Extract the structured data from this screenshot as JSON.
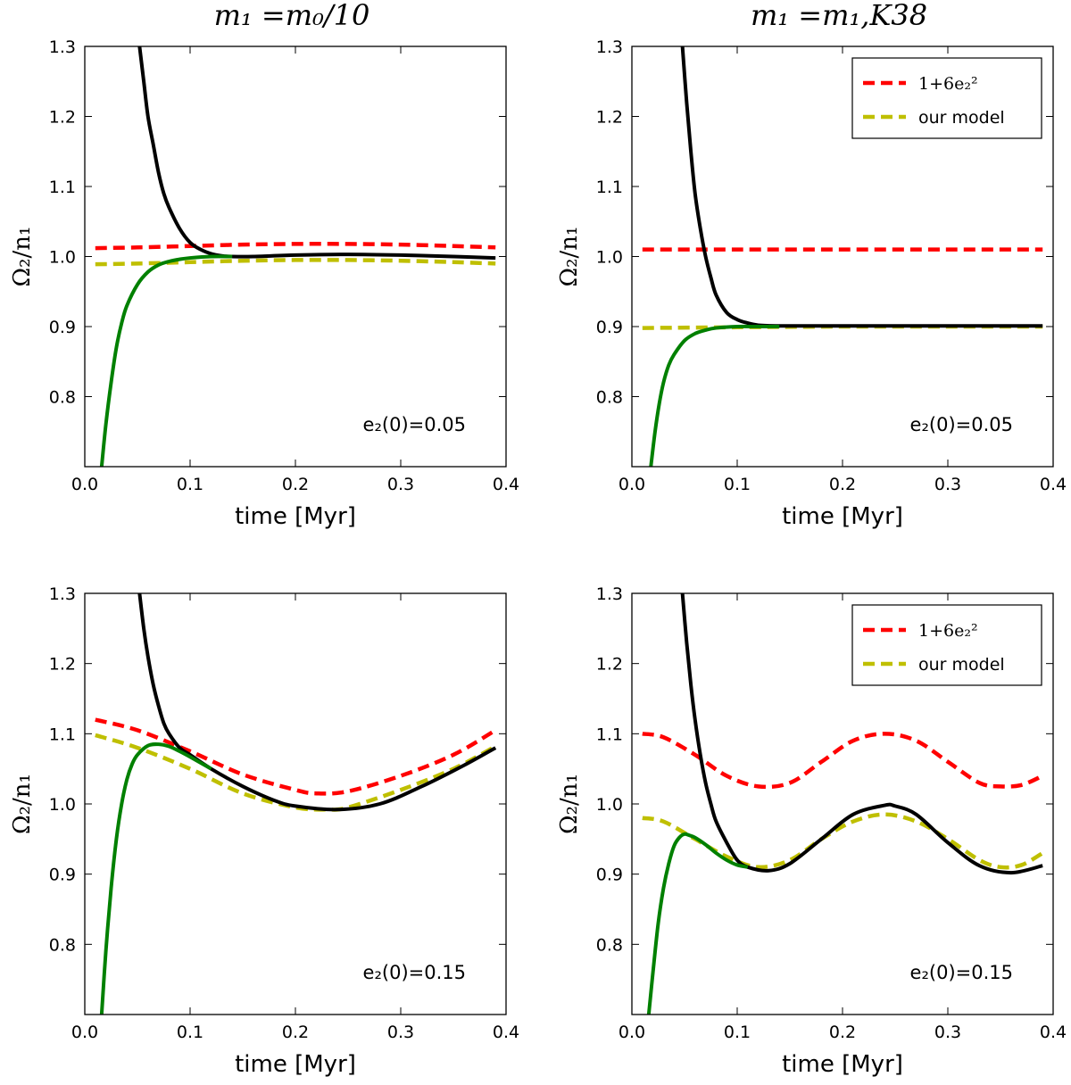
{
  "column_titles": [
    "m₁ =m₀/10",
    "m₁ =m₁,K38"
  ],
  "chart_data": [
    {
      "type": "line",
      "title": "m₁ =m₀/10",
      "xlabel": "time [Myr]",
      "ylabel": "Ω₂/n₁",
      "xlim": [
        0,
        0.4
      ],
      "ylim": [
        0.7,
        1.3
      ],
      "xticks": [
        "0.0",
        "0.1",
        "0.2",
        "0.3",
        "0.4"
      ],
      "yticks": [
        "0.8",
        "0.9",
        "1.0",
        "1.1",
        "1.2",
        "1.3"
      ],
      "annotation": "e₂(0)=0.05",
      "legend": null,
      "series": [
        {
          "name": "1+6e₂²",
          "color": "#ff0000",
          "style": "dashed",
          "x": [
            0.01,
            0.05,
            0.1,
            0.15,
            0.2,
            0.25,
            0.3,
            0.35,
            0.39
          ],
          "y": [
            1.012,
            1.013,
            1.015,
            1.017,
            1.018,
            1.018,
            1.017,
            1.015,
            1.013
          ]
        },
        {
          "name": "our model",
          "color": "#bfbf00",
          "style": "dashed",
          "x": [
            0.01,
            0.05,
            0.1,
            0.15,
            0.2,
            0.25,
            0.3,
            0.35,
            0.39
          ],
          "y": [
            0.989,
            0.99,
            0.992,
            0.994,
            0.995,
            0.995,
            0.994,
            0.992,
            0.99
          ]
        },
        {
          "name": "black",
          "color": "#000000",
          "style": "solid",
          "x": [
            0.052,
            0.056,
            0.06,
            0.065,
            0.07,
            0.075,
            0.08,
            0.09,
            0.1,
            0.11,
            0.12,
            0.13,
            0.14,
            0.16,
            0.2,
            0.25,
            0.3,
            0.35,
            0.39
          ],
          "y": [
            1.3,
            1.25,
            1.2,
            1.16,
            1.12,
            1.09,
            1.07,
            1.04,
            1.02,
            1.01,
            1.004,
            1.001,
            1.0,
            1.0,
            1.002,
            1.003,
            1.002,
            1.0,
            0.998
          ]
        },
        {
          "name": "green",
          "color": "#008000",
          "style": "solid",
          "x": [
            0.016,
            0.02,
            0.025,
            0.03,
            0.035,
            0.04,
            0.05,
            0.06,
            0.07,
            0.08,
            0.09,
            0.1,
            0.12,
            0.14
          ],
          "y": [
            0.7,
            0.76,
            0.82,
            0.87,
            0.905,
            0.93,
            0.96,
            0.978,
            0.988,
            0.993,
            0.996,
            0.998,
            1.0,
            1.0
          ]
        }
      ]
    },
    {
      "type": "line",
      "title": "m₁ =m₁,K38",
      "xlabel": "time [Myr]",
      "ylabel": "Ω₂/n₁",
      "xlim": [
        0,
        0.4
      ],
      "ylim": [
        0.7,
        1.3
      ],
      "xticks": [
        "0.0",
        "0.1",
        "0.2",
        "0.3",
        "0.4"
      ],
      "yticks": [
        "0.8",
        "0.9",
        "1.0",
        "1.1",
        "1.2",
        "1.3"
      ],
      "annotation": "e₂(0)=0.05",
      "legend": {
        "position": "upper right",
        "entries": [
          "1+6e₂²",
          "our model"
        ]
      },
      "series": [
        {
          "name": "1+6e₂²",
          "color": "#ff0000",
          "style": "dashed",
          "x": [
            0.01,
            0.1,
            0.2,
            0.3,
            0.39
          ],
          "y": [
            1.01,
            1.01,
            1.01,
            1.01,
            1.01
          ]
        },
        {
          "name": "our model",
          "color": "#bfbf00",
          "style": "dashed",
          "x": [
            0.01,
            0.1,
            0.2,
            0.3,
            0.39
          ],
          "y": [
            0.898,
            0.899,
            0.9,
            0.9,
            0.9
          ]
        },
        {
          "name": "black",
          "color": "#000000",
          "style": "solid",
          "x": [
            0.048,
            0.052,
            0.056,
            0.06,
            0.065,
            0.07,
            0.075,
            0.08,
            0.09,
            0.1,
            0.11,
            0.12,
            0.14,
            0.2,
            0.3,
            0.39
          ],
          "y": [
            1.3,
            1.22,
            1.15,
            1.09,
            1.04,
            1.0,
            0.97,
            0.945,
            0.92,
            0.91,
            0.905,
            0.902,
            0.901,
            0.901,
            0.901,
            0.901
          ]
        },
        {
          "name": "green",
          "color": "#008000",
          "style": "solid",
          "x": [
            0.018,
            0.022,
            0.026,
            0.03,
            0.035,
            0.04,
            0.05,
            0.06,
            0.07,
            0.08,
            0.1,
            0.12,
            0.14
          ],
          "y": [
            0.7,
            0.75,
            0.79,
            0.82,
            0.845,
            0.86,
            0.88,
            0.89,
            0.895,
            0.898,
            0.9,
            0.9,
            0.9
          ]
        }
      ]
    },
    {
      "type": "line",
      "title": "",
      "xlabel": "time [Myr]",
      "ylabel": "Ω₂/n₁",
      "xlim": [
        0,
        0.4
      ],
      "ylim": [
        0.7,
        1.3
      ],
      "xticks": [
        "0.0",
        "0.1",
        "0.2",
        "0.3",
        "0.4"
      ],
      "yticks": [
        "0.8",
        "0.9",
        "1.0",
        "1.1",
        "1.2",
        "1.3"
      ],
      "annotation": "e₂(0)=0.15",
      "legend": null,
      "series": [
        {
          "name": "1+6e₂²",
          "color": "#ff0000",
          "style": "dashed",
          "x": [
            0.01,
            0.05,
            0.1,
            0.15,
            0.2,
            0.22,
            0.25,
            0.3,
            0.35,
            0.39
          ],
          "y": [
            1.12,
            1.105,
            1.075,
            1.042,
            1.02,
            1.015,
            1.018,
            1.04,
            1.07,
            1.105
          ]
        },
        {
          "name": "our model",
          "color": "#bfbf00",
          "style": "dashed",
          "x": [
            0.01,
            0.05,
            0.1,
            0.15,
            0.2,
            0.23,
            0.25,
            0.3,
            0.35,
            0.39
          ],
          "y": [
            1.098,
            1.08,
            1.05,
            1.015,
            0.995,
            0.992,
            0.995,
            1.02,
            1.05,
            1.082
          ]
        },
        {
          "name": "black",
          "color": "#000000",
          "style": "solid",
          "x": [
            0.052,
            0.056,
            0.06,
            0.065,
            0.07,
            0.075,
            0.08,
            0.09,
            0.1,
            0.12,
            0.15,
            0.18,
            0.2,
            0.24,
            0.28,
            0.32,
            0.36,
            0.39
          ],
          "y": [
            1.3,
            1.25,
            1.21,
            1.17,
            1.14,
            1.115,
            1.1,
            1.08,
            1.07,
            1.05,
            1.025,
            1.005,
            0.997,
            0.992,
            1.0,
            1.025,
            1.055,
            1.08
          ]
        },
        {
          "name": "green",
          "color": "#008000",
          "style": "solid",
          "x": [
            0.016,
            0.02,
            0.025,
            0.03,
            0.035,
            0.04,
            0.045,
            0.05,
            0.06,
            0.07,
            0.08,
            0.09,
            0.1,
            0.12
          ],
          "y": [
            0.7,
            0.79,
            0.88,
            0.95,
            1.0,
            1.035,
            1.057,
            1.07,
            1.083,
            1.085,
            1.082,
            1.075,
            1.067,
            1.05
          ]
        }
      ]
    },
    {
      "type": "line",
      "title": "",
      "xlabel": "time [Myr]",
      "ylabel": "Ω₂/n₁",
      "xlim": [
        0,
        0.4
      ],
      "ylim": [
        0.7,
        1.3
      ],
      "xticks": [
        "0.0",
        "0.1",
        "0.2",
        "0.3",
        "0.4"
      ],
      "yticks": [
        "0.8",
        "0.9",
        "1.0",
        "1.1",
        "1.2",
        "1.3"
      ],
      "annotation": "e₂(0)=0.15",
      "legend": {
        "position": "upper right",
        "entries": [
          "1+6e₂²",
          "our model"
        ]
      },
      "series": [
        {
          "name": "1+6e₂²",
          "color": "#ff0000",
          "style": "dashed",
          "x": [
            0.01,
            0.03,
            0.06,
            0.09,
            0.12,
            0.15,
            0.18,
            0.21,
            0.24,
            0.27,
            0.3,
            0.33,
            0.35,
            0.37,
            0.39
          ],
          "y": [
            1.1,
            1.095,
            1.07,
            1.04,
            1.025,
            1.03,
            1.06,
            1.09,
            1.1,
            1.09,
            1.06,
            1.03,
            1.025,
            1.027,
            1.04
          ]
        },
        {
          "name": "our model",
          "color": "#bfbf00",
          "style": "dashed",
          "x": [
            0.01,
            0.03,
            0.06,
            0.09,
            0.12,
            0.15,
            0.18,
            0.21,
            0.24,
            0.27,
            0.3,
            0.33,
            0.35,
            0.37,
            0.39
          ],
          "y": [
            0.98,
            0.975,
            0.95,
            0.925,
            0.91,
            0.92,
            0.95,
            0.975,
            0.985,
            0.975,
            0.95,
            0.92,
            0.91,
            0.913,
            0.93
          ]
        },
        {
          "name": "black",
          "color": "#000000",
          "style": "solid",
          "x": [
            0.048,
            0.052,
            0.056,
            0.06,
            0.065,
            0.07,
            0.075,
            0.08,
            0.09,
            0.1,
            0.11,
            0.13,
            0.15,
            0.18,
            0.21,
            0.24,
            0.25,
            0.27,
            0.3,
            0.33,
            0.36,
            0.39
          ],
          "y": [
            1.3,
            1.23,
            1.17,
            1.12,
            1.07,
            1.03,
            1.0,
            0.975,
            0.945,
            0.92,
            0.91,
            0.905,
            0.915,
            0.95,
            0.985,
            0.998,
            0.997,
            0.985,
            0.945,
            0.912,
            0.902,
            0.912
          ]
        },
        {
          "name": "green",
          "color": "#008000",
          "style": "solid",
          "x": [
            0.016,
            0.02,
            0.025,
            0.03,
            0.035,
            0.04,
            0.045,
            0.05,
            0.055,
            0.06,
            0.07,
            0.08,
            0.09,
            0.1,
            0.11
          ],
          "y": [
            0.7,
            0.76,
            0.83,
            0.88,
            0.915,
            0.94,
            0.952,
            0.957,
            0.955,
            0.952,
            0.942,
            0.93,
            0.92,
            0.913,
            0.91
          ]
        }
      ]
    }
  ]
}
